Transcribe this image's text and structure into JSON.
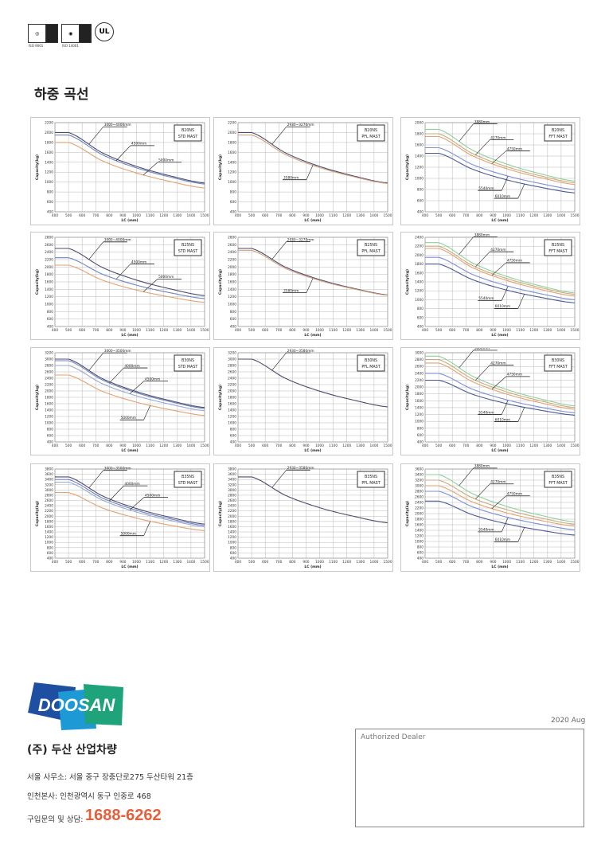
{
  "header": {
    "cert_labels": [
      "ISO 9001",
      "ISO 14001"
    ],
    "ul_label": "UL",
    "title": "하중 곡선"
  },
  "colors": {
    "std": [
      "#4b4b6e",
      "#6f84bf",
      "#9aa9cf",
      "#e3a26f"
    ],
    "pfl": [
      "#4b4b6e",
      "#d6a27a"
    ],
    "fft": [
      "#8fcf9c",
      "#c9ab7b",
      "#e3a26f",
      "#7b8fd6",
      "#4b5a92"
    ],
    "phone": "#e5603a",
    "logo": [
      "#1f4fa0",
      "#1d9ad6",
      "#1fa37a"
    ]
  },
  "chart_data": [
    {
      "type": "line",
      "model": "B20NS",
      "mast": "STD MAST",
      "xlabel": "LC (mm)",
      "ylabel": "Capacity(kg)",
      "xlim": [
        400,
        1500
      ],
      "ylim": [
        400,
        2200
      ],
      "ystep": 200,
      "grid": true,
      "colorset": "std",
      "x": [
        400,
        500,
        750,
        1000,
        1250,
        1500
      ],
      "series": [
        {
          "name": "3000~4000mm",
          "values": [
            2000,
            2000,
            1588,
            1316,
            1124,
            980
          ]
        },
        {
          "name": "4500mm",
          "values": [
            1950,
            1950,
            1550,
            1286,
            1100,
            960
          ]
        },
        {
          "name": "5000mm",
          "values": [
            1800,
            1800,
            1428,
            1183,
            1010,
            880
          ],
          "color_index": 3
        }
      ]
    },
    {
      "type": "line",
      "model": "B20NS",
      "mast": "PFL MAST",
      "xlabel": "LC (mm)",
      "ylabel": "Capacity(kg)",
      "xlim": [
        400,
        1500
      ],
      "ylim": [
        400,
        2200
      ],
      "ystep": 200,
      "grid": true,
      "colorset": "pfl",
      "x": [
        400,
        500,
        750,
        1000,
        1250,
        1500
      ],
      "series": [
        {
          "name": "2930~3270mm",
          "values": [
            2000,
            2000,
            1588,
            1316,
            1124,
            980
          ]
        },
        {
          "name": "3580mm",
          "values": [
            1950,
            1950,
            1554,
            1292,
            1108,
            970
          ]
        }
      ]
    },
    {
      "type": "line",
      "model": "B20NS",
      "mast": "FFT MAST",
      "xlabel": "LC (mm)",
      "ylabel": "Capacity(kg)",
      "xlim": [
        400,
        1500
      ],
      "ylim": [
        400,
        2000
      ],
      "ystep": 200,
      "grid": true,
      "colorset": "fft",
      "x": [
        400,
        500,
        750,
        1000,
        1250,
        1500
      ],
      "series": [
        {
          "name": "3880mm",
          "values": [
            1880,
            1880,
            1504,
            1256,
            1081,
            950
          ]
        },
        {
          "name": "4270mm",
          "values": [
            1800,
            1800,
            1444,
            1210,
            1044,
            920
          ]
        },
        {
          "name": "4750mm",
          "values": [
            1750,
            1750,
            1403,
            1173,
            1011,
            890
          ]
        },
        {
          "name": "5540mm",
          "values": [
            1550,
            1550,
            1247,
            1047,
            906,
            800
          ]
        },
        {
          "name": "6010mm",
          "values": [
            1450,
            1450,
            1163,
            974,
            840,
            740
          ]
        }
      ]
    },
    {
      "type": "line",
      "model": "B25NS",
      "mast": "STD MAST",
      "xlabel": "LC (mm)",
      "ylabel": "Capacity(kg)",
      "xlim": [
        400,
        1500
      ],
      "ylim": [
        400,
        2800
      ],
      "ystep": 200,
      "grid": true,
      "colorset": "std",
      "x": [
        400,
        500,
        750,
        1000,
        1250,
        1500
      ],
      "series": [
        {
          "name": "3000~4000mm",
          "values": [
            2500,
            2500,
            1987,
            1648,
            1409,
            1230
          ]
        },
        {
          "name": "4500mm",
          "values": [
            2250,
            2250,
            1806,
            1512,
            1305,
            1150
          ]
        },
        {
          "name": "5000mm",
          "values": [
            2050,
            2050,
            1646,
            1379,
            1191,
            1050
          ],
          "color_index": 3
        }
      ]
    },
    {
      "type": "line",
      "model": "B25NS",
      "mast": "PFL MAST",
      "xlabel": "LC (mm)",
      "ylabel": "Capacity(kg)",
      "xlim": [
        400,
        1500
      ],
      "ylim": [
        400,
        2800
      ],
      "ystep": 200,
      "grid": true,
      "colorset": "pfl",
      "x": [
        400,
        500,
        750,
        1000,
        1250,
        1500
      ],
      "series": [
        {
          "name": "2930~3270mm",
          "values": [
            2500,
            2500,
            1995,
            1661,
            1426,
            1250
          ]
        },
        {
          "name": "3580mm",
          "values": [
            2450,
            2450,
            1961,
            1638,
            1411,
            1240
          ]
        }
      ]
    },
    {
      "type": "line",
      "model": "B25NS",
      "mast": "FFT MAST",
      "xlabel": "LC (mm)",
      "ylabel": "Capacity(kg)",
      "xlim": [
        400,
        1500
      ],
      "ylim": [
        400,
        2400
      ],
      "ystep": 200,
      "grid": true,
      "colorset": "fft",
      "x": [
        400,
        500,
        750,
        1000,
        1250,
        1500
      ],
      "series": [
        {
          "name": "3880mm",
          "values": [
            2280,
            2280,
            1823,
            1522,
            1309,
            1150
          ]
        },
        {
          "name": "4270mm",
          "values": [
            2200,
            2200,
            1764,
            1475,
            1272,
            1120
          ]
        },
        {
          "name": "4750mm",
          "values": [
            2150,
            2150,
            1718,
            1432,
            1231,
            1080
          ]
        },
        {
          "name": "5540mm",
          "values": [
            1950,
            1950,
            1566,
            1313,
            1134,
            1000
          ]
        },
        {
          "name": "6010mm",
          "values": [
            1800,
            1800,
            1449,
            1216,
            1053,
            930
          ]
        }
      ]
    },
    {
      "type": "line",
      "model": "B30NS",
      "mast": "STD MAST",
      "xlabel": "LC (mm)",
      "ylabel": "Capacity(kg)",
      "xlim": [
        400,
        1500
      ],
      "ylim": [
        400,
        3200
      ],
      "ystep": 200,
      "grid": true,
      "colorset": "std",
      "x": [
        400,
        500,
        750,
        1000,
        1250,
        1500
      ],
      "series": [
        {
          "name": "3000~3500mm",
          "values": [
            3000,
            3000,
            2386,
            1980,
            1694,
            1480
          ]
        },
        {
          "name": "4000mm",
          "values": [
            2950,
            2950,
            2344,
            1944,
            1662,
            1450
          ]
        },
        {
          "name": "4500mm",
          "values": [
            2800,
            2800,
            2226,
            1847,
            1580,
            1380
          ]
        },
        {
          "name": "5000mm",
          "values": [
            2500,
            2500,
            1987,
            1648,
            1409,
            1230
          ]
        }
      ]
    },
    {
      "type": "line",
      "model": "B30NS",
      "mast": "PFL MAST",
      "xlabel": "LC (mm)",
      "ylabel": "Capacity(kg)",
      "xlim": [
        400,
        1500
      ],
      "ylim": [
        400,
        3200
      ],
      "ystep": 200,
      "grid": true,
      "colorset": "pfl",
      "x": [
        400,
        500,
        750,
        1000,
        1250,
        1500
      ],
      "series": [
        {
          "name": "2930~3580mm",
          "values": [
            3000,
            3000,
            2394,
            1994,
            1712,
            1500
          ]
        }
      ]
    },
    {
      "type": "line",
      "model": "B30NS",
      "mast": "FFT MAST",
      "xlabel": "LC (mm)",
      "ylabel": "Capacity(kg)",
      "xlim": [
        400,
        1500
      ],
      "ylim": [
        400,
        3000
      ],
      "ystep": 200,
      "grid": true,
      "colorset": "fft",
      "x": [
        400,
        500,
        750,
        1000,
        1250,
        1500
      ],
      "series": [
        {
          "name": "3880mm",
          "values": [
            2900,
            2900,
            2314,
            1927,
            1654,
            1450
          ]
        },
        {
          "name": "4270mm",
          "values": [
            2800,
            2800,
            2234,
            1861,
            1597,
            1400
          ]
        },
        {
          "name": "4750mm",
          "values": [
            2700,
            2700,
            2155,
            1794,
            1540,
            1350
          ]
        },
        {
          "name": "5540mm",
          "values": [
            2400,
            2400,
            1935,
            1628,
            1412,
            1250
          ]
        },
        {
          "name": "6010mm",
          "values": [
            2200,
            2200,
            1788,
            1516,
            1324,
            1180
          ]
        }
      ]
    },
    {
      "type": "line",
      "model": "B35NS",
      "mast": "STD MAST",
      "xlabel": "LC (mm)",
      "ylabel": "Capacity(kg)",
      "xlim": [
        400,
        1500
      ],
      "ylim": [
        400,
        3800
      ],
      "ystep": 200,
      "grid": true,
      "colorset": "std",
      "x": [
        400,
        500,
        750,
        1000,
        1250,
        1500
      ],
      "series": [
        {
          "name": "3000~3500mm",
          "values": [
            3500,
            3500,
            2773,
            2292,
            1954,
            1700
          ]
        },
        {
          "name": "4000mm",
          "values": [
            3400,
            3400,
            2693,
            2226,
            1897,
            1650
          ]
        },
        {
          "name": "4500mm",
          "values": [
            3300,
            3300,
            2613,
            2159,
            1840,
            1600
          ]
        },
        {
          "name": "5000mm",
          "values": [
            2900,
            2900,
            2314,
            1927,
            1654,
            1450
          ]
        }
      ]
    },
    {
      "type": "line",
      "model": "B35NS",
      "mast": "PFL MAST",
      "xlabel": "LC (mm)",
      "ylabel": "Capacity(kg)",
      "xlim": [
        400,
        1500
      ],
      "ylim": [
        400,
        3800
      ],
      "ystep": 200,
      "grid": true,
      "colorset": "pfl",
      "x": [
        400,
        500,
        750,
        1000,
        1250,
        1500
      ],
      "series": [
        {
          "name": "2930~3580mm",
          "values": [
            3500,
            3500,
            2793,
            2326,
            1997,
            1750
          ]
        }
      ]
    },
    {
      "type": "line",
      "model": "B35NS",
      "mast": "FFT MAST",
      "xlabel": "LC (mm)",
      "ylabel": "Capacity(kg)",
      "xlim": [
        400,
        1500
      ],
      "ylim": [
        400,
        3600
      ],
      "ystep": 200,
      "grid": true,
      "colorset": "fft",
      "x": [
        400,
        500,
        750,
        1000,
        1250,
        1500
      ],
      "series": [
        {
          "name": "3880mm",
          "values": [
            3400,
            3400,
            2713,
            2259,
            1940,
            1700
          ]
        },
        {
          "name": "4270mm",
          "values": [
            3200,
            3200,
            2562,
            2140,
            1843,
            1620
          ]
        },
        {
          "name": "4750mm",
          "values": [
            3000,
            3000,
            2414,
            2027,
            1754,
            1550
          ]
        },
        {
          "name": "5540mm",
          "values": [
            2800,
            2800,
            2242,
            1874,
            1615,
            1420
          ]
        },
        {
          "name": "6010mm",
          "values": [
            2450,
            2450,
            1957,
            1631,
            1402,
            1230
          ]
        }
      ]
    }
  ],
  "footer": {
    "logo_text": "DOOSAN",
    "company": "(주) 두산 산업차량",
    "seoul_office": "서울 사무소: 서울 중구 장충단로275 두산타워 21층",
    "incheon_hq": "인천본사: 인천광역시 동구 인중로 468",
    "phone_label": "구입문의 및 상담:",
    "phone": "1688-6262",
    "date": "2020 Aug",
    "dealer_label": "Authorized Dealer"
  }
}
